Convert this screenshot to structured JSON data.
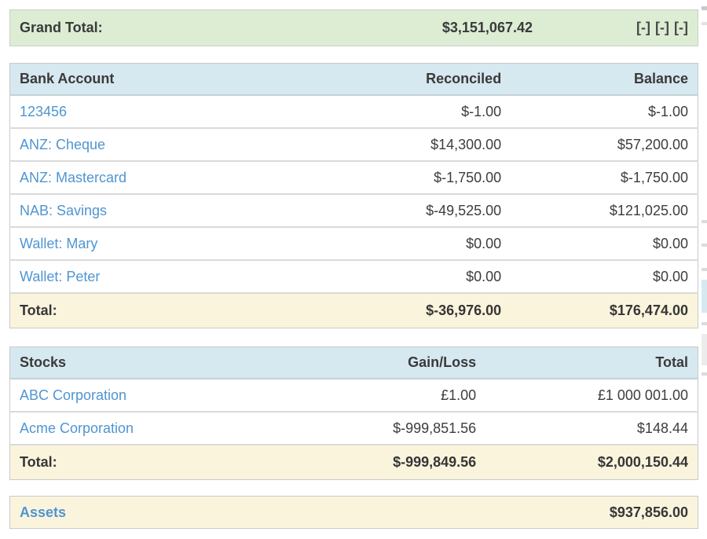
{
  "grand_total": {
    "label": "Grand Total:",
    "amount": "$3,151,067.42",
    "toggles": [
      "[-]",
      "[-]",
      "[-]"
    ]
  },
  "bank_accounts": {
    "headers": [
      "Bank Account",
      "Reconciled",
      "Balance"
    ],
    "rows": [
      {
        "name": "123456",
        "reconciled": "$-1.00",
        "balance": "$-1.00"
      },
      {
        "name": "ANZ: Cheque",
        "reconciled": "$14,300.00",
        "balance": "$57,200.00"
      },
      {
        "name": "ANZ: Mastercard",
        "reconciled": "$-1,750.00",
        "balance": "$-1,750.00"
      },
      {
        "name": "NAB: Savings",
        "reconciled": "$-49,525.00",
        "balance": "$121,025.00"
      },
      {
        "name": "Wallet: Mary",
        "reconciled": "$0.00",
        "balance": "$0.00"
      },
      {
        "name": "Wallet: Peter",
        "reconciled": "$0.00",
        "balance": "$0.00"
      }
    ],
    "total": {
      "label": "Total:",
      "reconciled": "$-36,976.00",
      "balance": "$176,474.00"
    }
  },
  "stocks": {
    "headers": [
      "Stocks",
      "Gain/Loss",
      "Total"
    ],
    "rows": [
      {
        "name": "ABC Corporation",
        "gain_loss": "£1.00",
        "total": "£1 000 001.00"
      },
      {
        "name": "Acme Corporation",
        "gain_loss": "$-999,851.56",
        "total": "$148.44"
      }
    ],
    "total": {
      "label": "Total:",
      "gain_loss": "$-999,849.56",
      "total": "$2,000,150.44"
    }
  },
  "assets": {
    "label": "Assets",
    "amount": "$937,856.00"
  },
  "colors": {
    "grand_total_bg": "#dcedd4",
    "table_header_bg": "#d6e8f0",
    "total_row_bg": "#fbf4dd",
    "link_blue": "#4f95d1",
    "border_gray": "#c9c9c9"
  }
}
